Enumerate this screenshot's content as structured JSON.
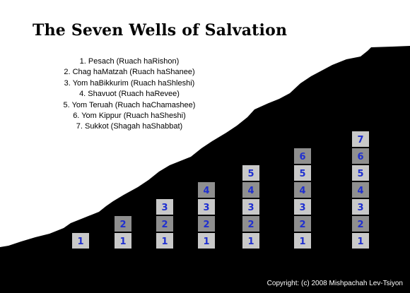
{
  "title": "The Seven Wells of Salvation",
  "wells": [
    "1. Pesach (Ruach haRishon)",
    "2. Chag haMatzah (Ruach haShanee)",
    "3. Yom haBikkurim (Ruach haShleshi)",
    "4. Shavuot (Ruach haRevee)",
    "5. Yom Teruah (Ruach haChamashee)",
    "6. Yom Kippur (Ruach haSheshi)",
    "7. Sukkot (Shagah haShabbat)"
  ],
  "copyright": "Copyright: (c) 2008 Mishpachah Lev-Tsiyon",
  "stacks": [
    1,
    2,
    3,
    4,
    5,
    6,
    7
  ],
  "colors": {
    "cell_light": "#c9c9c9",
    "cell_dark": "#8f8f8f",
    "number": "#1f2fd0",
    "silhouette": "#000000"
  }
}
